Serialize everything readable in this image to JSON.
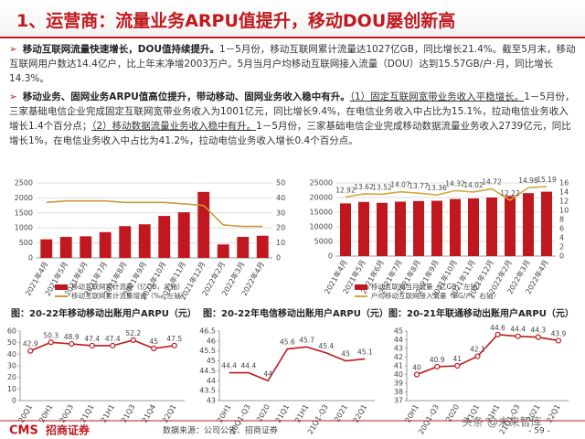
{
  "header": {
    "title": "1、运营商：流量业务ARPU值提升，移动DOU屡创新高"
  },
  "bullets": [
    {
      "lead": "移动互联网流量快速增长，DOU值持续提升。",
      "text": "1－5月份，移动互联网累计流量达1027亿GB，同比增长21.4%。截至5月末，移动互联网用户数达14.4亿户，比上年末净增2003万户。5月当月户均移动互联网接入流量（DOU）达到15.57GB/户·月，同比增长14.3%。"
    },
    {
      "lead": "移动业务、固网业务ARPU值高位提升，带动移动、固网业务收入稳中有升。",
      "u1": "（1）固定互联网宽带业务收入平稳增长。",
      "t1": "1－5月份，三家基础电信企业完成固定互联网宽带业务收入为1001亿元，同比增长9.4%，在电信业务收入中占比为15.1%，拉动电信业务收入增长1.4个百分点；",
      "u2": "（2）移动数据流量业务收入稳中有升。",
      "t2": "1－5月份，三家基础电信企业完成移动数据流量业务收入2739亿元，同比增长1%，在电信业务收入中占比为41.2%，拉动电信业务收入增长0.4个百分点。"
    }
  ],
  "chart_data": [
    {
      "type": "combo",
      "categories": [
        "2021年4月",
        "2021年5月",
        "2021年6月",
        "2021年7月",
        "2021年8月",
        "2021年9月",
        "2021年10月",
        "2021年11月",
        "2021年12月",
        "2022年2月",
        "2022年3月",
        "2022年4月"
      ],
      "series": [
        {
          "name": "移动互联网累计流量（亿GB，左轴）",
          "type": "bar",
          "color": "#c0181e",
          "values": [
            620,
            700,
            720,
            860,
            1060,
            1120,
            1400,
            1520,
            2200,
            450,
            700,
            740
          ]
        },
        {
          "name": "移动互联网累计流量增速（%，左轴）",
          "type": "line",
          "axis": "y2",
          "color": "#c89a3c",
          "values": [
            37,
            38,
            38,
            38,
            37,
            37,
            37,
            36,
            35,
            22,
            21,
            21
          ]
        }
      ],
      "ylim": [
        0,
        2500
      ],
      "yticks": [
        0,
        500,
        1000,
        1500,
        2000,
        2500
      ],
      "y2lim": [
        0,
        50
      ],
      "y2ticks": [
        0,
        10,
        20,
        30,
        40,
        50
      ],
      "grid": true
    },
    {
      "type": "combo",
      "categories": [
        "2021年4月",
        "2021年5月",
        "2021年6月",
        "2021年7月",
        "2021年8月",
        "2021年9月",
        "2021年10月",
        "2021年11月",
        "2021年12月",
        "2022年2月",
        "2022年3月",
        "2022年4月"
      ],
      "series": [
        {
          "name": "移动互联网当月流量（亿GB，左轴）",
          "type": "bar",
          "color": "#c0181e",
          "values": [
            18000,
            18500,
            18200,
            18600,
            18800,
            18900,
            19500,
            19700,
            20000,
            20500,
            21500,
            22000
          ]
        },
        {
          "name": "户均移动互联网接入流量（BG/户，右轴）",
          "type": "line",
          "axis": "y2",
          "color": "#d4a83a",
          "values": [
            12.92,
            13.62,
            13.52,
            14.07,
            13.77,
            13.36,
            14.32,
            14.02,
            14.72,
            12.22,
            14.98,
            15.19
          ],
          "labels": true
        }
      ],
      "ylim": [
        0,
        25000
      ],
      "yticks": [
        0,
        5000,
        10000,
        15000,
        20000,
        25000
      ],
      "y2lim": [
        0,
        16
      ],
      "y2ticks": [
        0,
        2,
        4,
        6,
        8,
        10,
        12,
        14,
        16
      ],
      "grid": true
    },
    {
      "type": "line",
      "title": "图：20-22年移动移动出账用户ARPU（元）",
      "categories": [
        "20Q1",
        "20H1",
        "20Q3",
        "21Q1",
        "21H1",
        "21Q3",
        "21Q4",
        "22Q1"
      ],
      "series": [
        {
          "color": "#c0181e",
          "values": [
            42.9,
            50.3,
            48.9,
            47.4,
            47.4,
            52.2,
            45,
            47.5
          ],
          "markers": true
        }
      ],
      "ylim": [
        0,
        60
      ],
      "yticks": [
        0,
        10,
        20,
        30,
        40,
        50,
        60
      ],
      "grid": false
    },
    {
      "type": "line",
      "title": "图：20-22年电信移动出账用户ARPU（元）",
      "categories": [
        "20H1",
        "20Q1-Q3",
        "2020",
        "21Q1",
        "21H1",
        "21Q1-Q3",
        "2021",
        "22Q1"
      ],
      "series": [
        {
          "color": "#c0181e",
          "values": [
            44.4,
            44.4,
            44,
            45.6,
            45.7,
            45.4,
            45,
            45.1
          ],
          "markers": false
        }
      ],
      "ylim": [
        43,
        46.5
      ],
      "yticks": [
        43,
        43.5,
        44,
        44.5,
        45,
        45.5,
        46,
        46.5
      ],
      "grid": false
    },
    {
      "type": "line",
      "title": "图：20-21年联通移动出账用户ARPU（元）",
      "categories": [
        "20H1",
        "20Q1-Q3",
        "2020",
        "21Q1",
        "21H1",
        "21Q1-Q3",
        "2021",
        "22Q1"
      ],
      "series": [
        {
          "color": "#c0181e",
          "values": [
            40,
            40.9,
            41,
            42.1,
            44.6,
            44.4,
            44.3,
            43.9
          ],
          "markers": true
        }
      ],
      "ylim": [
        37,
        45
      ],
      "yticks": [
        37,
        38,
        39,
        40,
        41,
        42,
        43,
        44,
        45
      ],
      "grid": false
    }
  ],
  "footer": {
    "logo": "CMS",
    "logo_name": "招商证券",
    "source": "数据来源：公司公告、招商证券",
    "page": "- 59 -",
    "watermark": "头条 @未来智库"
  }
}
